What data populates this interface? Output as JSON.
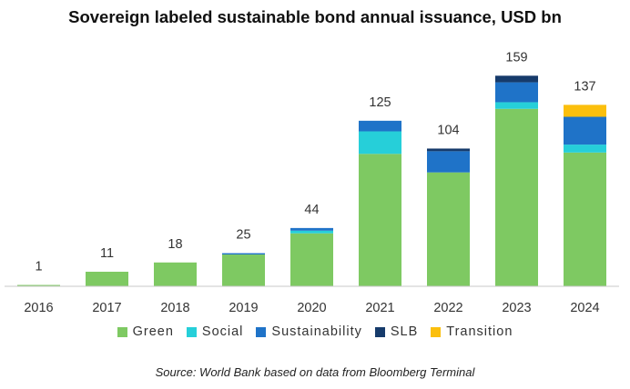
{
  "chart_data": {
    "type": "bar",
    "stacked": true,
    "title": "Sovereign labeled sustainable bond annual issuance, USD bn",
    "source": "Source: World Bank based on data from Bloomberg Terminal",
    "categories": [
      "2016",
      "2017",
      "2018",
      "2019",
      "2020",
      "2021",
      "2022",
      "2023",
      "2024"
    ],
    "totals": [
      1,
      11,
      18,
      25,
      44,
      125,
      104,
      159,
      137
    ],
    "series": [
      {
        "name": "Green",
        "color": "#7ec962",
        "values": [
          1,
          11,
          18,
          24,
          40,
          100,
          86,
          134,
          101
        ]
      },
      {
        "name": "Social",
        "color": "#26cfd9",
        "values": [
          0,
          0,
          0,
          0,
          2,
          17,
          0,
          5,
          6
        ]
      },
      {
        "name": "Sustainability",
        "color": "#1f73c8",
        "values": [
          0,
          0,
          0,
          1,
          2,
          8,
          16,
          15,
          21
        ]
      },
      {
        "name": "SLB",
        "color": "#163b6b",
        "values": [
          0,
          0,
          0,
          0,
          0,
          0,
          2,
          5,
          0
        ]
      },
      {
        "name": "Transition",
        "color": "#fbbf0d",
        "values": [
          0,
          0,
          0,
          0,
          0,
          0,
          0,
          0,
          9
        ]
      }
    ],
    "ylim": [
      0,
      175
    ],
    "grid": false,
    "legend_position": "bottom"
  }
}
